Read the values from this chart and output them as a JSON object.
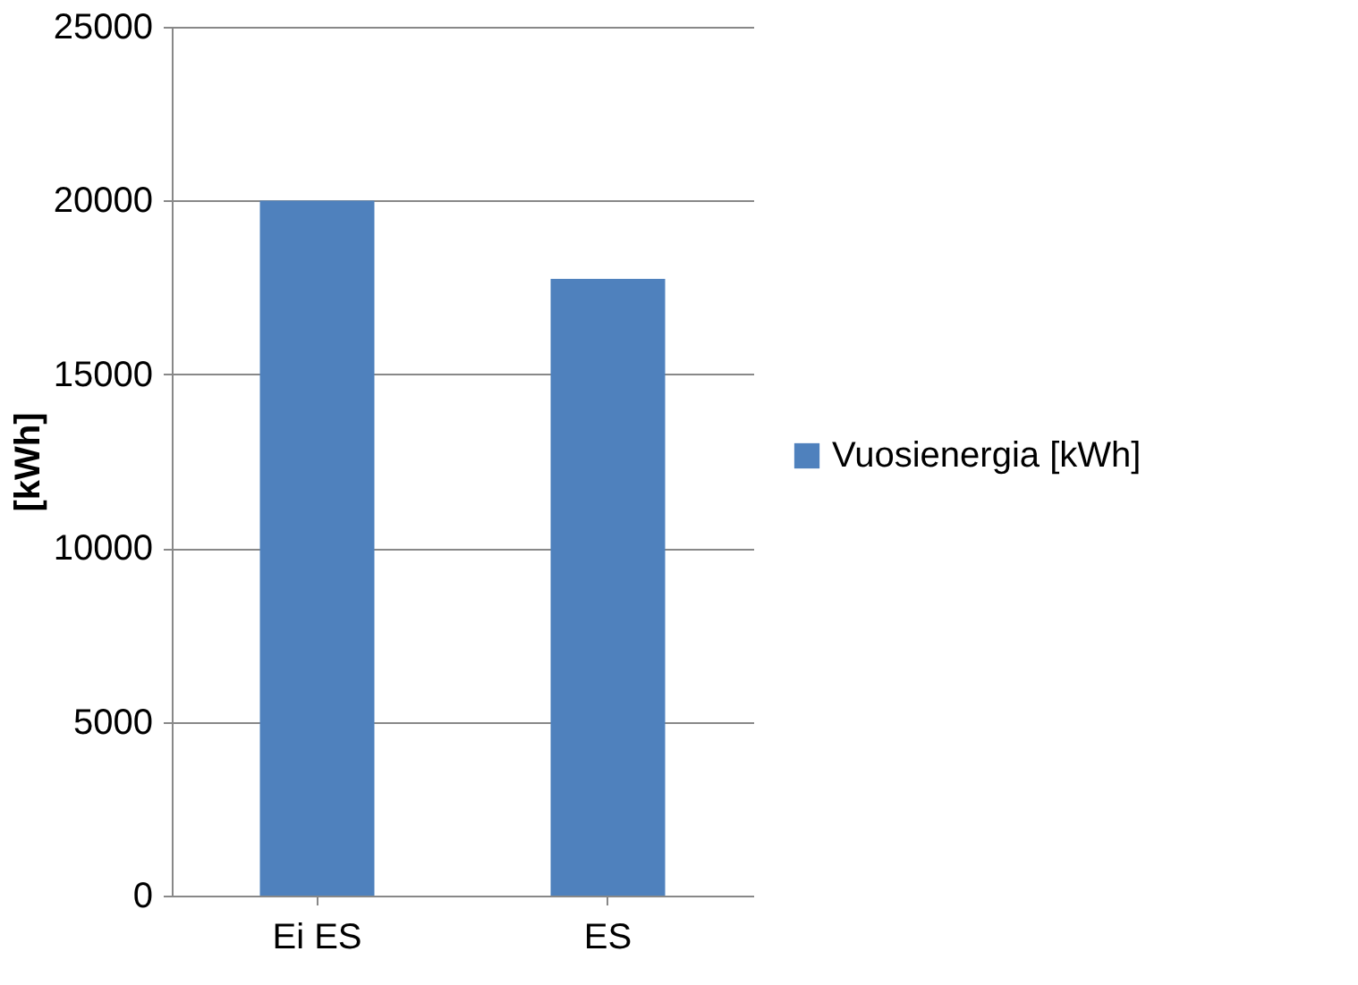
{
  "chart_data": {
    "type": "bar",
    "ylabel": "[kWh]",
    "categories": [
      "Ei ES",
      "ES"
    ],
    "series": [
      {
        "name": "Vuosienergia [kWh]",
        "color": "#4f81bd",
        "values": [
          20000,
          17750
        ]
      }
    ],
    "ylim": [
      0,
      25000
    ],
    "yticks": [
      0,
      5000,
      10000,
      15000,
      20000,
      25000
    ],
    "grid": "y",
    "legend": "right"
  }
}
